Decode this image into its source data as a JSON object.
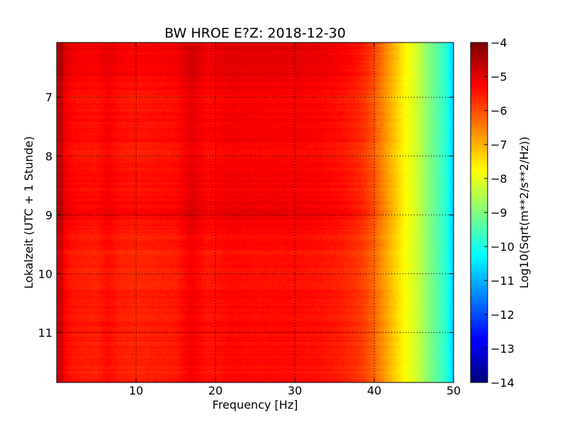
{
  "chart_data": {
    "type": "heatmap",
    "title": "BW HROE E?Z: 2018-12-30",
    "xlabel": "Frequency [Hz]",
    "ylabel": "Lokalzeit (UTC + 1 Stunde)",
    "colorbar_label": "Log10(Sqrt(m**2/s**2/Hz))",
    "colormap": "jet",
    "grid": true,
    "xlim": [
      0,
      50
    ],
    "ylim": [
      6.07,
      11.85
    ],
    "y_inverted": true,
    "x_ticks": [
      10,
      20,
      30,
      40,
      50
    ],
    "x_tick_labels": [
      "10",
      "20",
      "30",
      "40",
      "50"
    ],
    "y_ticks": [
      7,
      8,
      9,
      10,
      11
    ],
    "y_tick_labels": [
      "7",
      "8",
      "9",
      "10",
      "11"
    ],
    "color_range": [
      -14,
      -4
    ],
    "colorbar_ticks": [
      -4,
      -5,
      -6,
      -7,
      -8,
      -9,
      -10,
      -11,
      -12,
      -13,
      -14
    ],
    "colorbar_tick_labels": [
      "−4",
      "−5",
      "−6",
      "−7",
      "−8",
      "−9",
      "−10",
      "−11",
      "−12",
      "−13",
      "−14"
    ],
    "frequency_profile": {
      "frequency_hz": [
        0,
        0.5,
        1,
        2,
        3,
        5,
        6.5,
        8,
        10,
        12,
        15,
        17,
        19,
        22,
        25,
        30,
        33,
        36,
        38,
        39,
        40,
        41,
        42,
        43,
        44,
        45,
        46,
        47,
        48,
        49,
        49.5,
        50
      ],
      "log10_amplitude": [
        -4.9,
        -4.6,
        -5.2,
        -5.4,
        -5.45,
        -5.5,
        -5.3,
        -5.5,
        -5.55,
        -5.5,
        -5.45,
        -5.1,
        -5.4,
        -5.25,
        -5.3,
        -5.3,
        -5.35,
        -5.5,
        -5.7,
        -5.9,
        -6.2,
        -6.6,
        -7.0,
        -7.4,
        -7.8,
        -8.1,
        -8.5,
        -9.0,
        -9.4,
        -9.8,
        -10.3,
        -10.8
      ]
    },
    "time_variation": {
      "hours": [
        6.1,
        6.3,
        6.5,
        6.7,
        7.0,
        7.4,
        7.7,
        8.0,
        8.3,
        8.6,
        8.9,
        9.0,
        9.2,
        9.5,
        9.8,
        10.0,
        10.3,
        10.6,
        10.9,
        11.2,
        11.5,
        11.8
      ],
      "offset_log10": [
        0.3,
        0.25,
        0.3,
        0.2,
        0.05,
        0.1,
        0.15,
        0.0,
        0.15,
        0.1,
        0.2,
        0.25,
        0.05,
        -0.05,
        -0.1,
        -0.1,
        -0.05,
        0.0,
        0.0,
        -0.05,
        -0.05,
        0.0
      ]
    }
  }
}
